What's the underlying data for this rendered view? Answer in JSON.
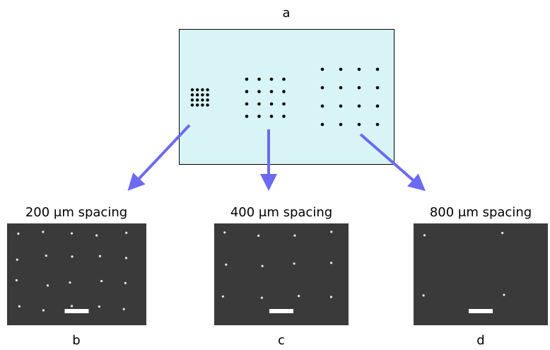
{
  "figure": {
    "label": "a",
    "panels": [
      {
        "title": "200 μm spacing",
        "label": "b"
      },
      {
        "title": "400 μm spacing",
        "label": "c"
      },
      {
        "title": "800 μm spacing",
        "label": "d"
      }
    ]
  }
}
